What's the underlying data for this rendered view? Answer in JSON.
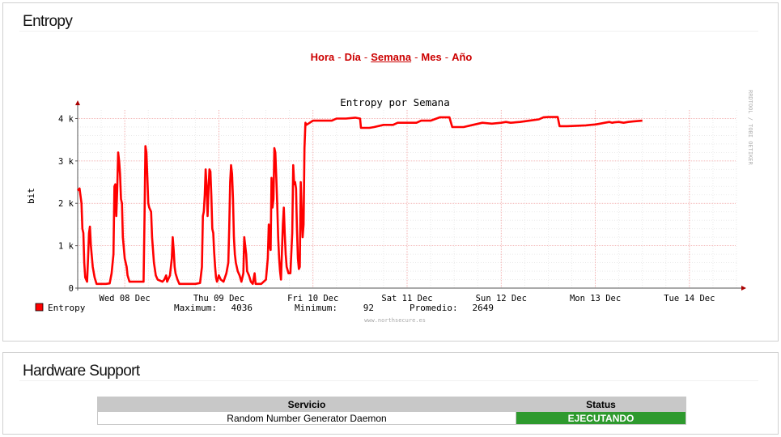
{
  "entropy_panel": {
    "title": "Entropy",
    "periods": [
      {
        "label": "Hora",
        "active": false
      },
      {
        "label": "Día",
        "active": false
      },
      {
        "label": "Semana",
        "active": true
      },
      {
        "label": "Mes",
        "active": false
      },
      {
        "label": "Año",
        "active": false
      }
    ],
    "separator": "-"
  },
  "chart_data": {
    "type": "line",
    "title": "Entropy por Semana",
    "ylabel": "bit",
    "ylim": [
      0,
      4200
    ],
    "yticks": [
      {
        "value": 0,
        "label": "0"
      },
      {
        "value": 1000,
        "label": "1 k"
      },
      {
        "value": 2000,
        "label": "2 k"
      },
      {
        "value": 3000,
        "label": "3 k"
      },
      {
        "value": 4000,
        "label": "4 k"
      }
    ],
    "xlim": [
      0,
      7
    ],
    "xticks": [
      {
        "value": 0.5,
        "label": "Wed 08 Dec"
      },
      {
        "value": 1.5,
        "label": "Thu 09 Dec"
      },
      {
        "value": 2.5,
        "label": "Fri 10 Dec"
      },
      {
        "value": 3.5,
        "label": "Sat 11 Dec"
      },
      {
        "value": 4.5,
        "label": "Sun 12 Dec"
      },
      {
        "value": 5.5,
        "label": "Mon 13 Dec"
      },
      {
        "value": 6.5,
        "label": "Tue 14 Dec"
      }
    ],
    "x_units": "days from left edge of plot",
    "grid": true,
    "line_color": "#ff0000",
    "watermark": "RRDTOOL / TOBI OETIKER",
    "footer": "www.northsecure.es",
    "legend": {
      "name": "Entropy",
      "color": "#ff0000",
      "maximum_label": "Maximum:",
      "maximum": "4036",
      "minimum_label": "Minimum:",
      "minimum": "92",
      "average_label": "Promedio:",
      "average": "2649"
    },
    "series": [
      {
        "name": "Entropy",
        "points": [
          [
            0.0,
            2300
          ],
          [
            0.02,
            2350
          ],
          [
            0.04,
            2000
          ],
          [
            0.05,
            1400
          ],
          [
            0.06,
            1300
          ],
          [
            0.07,
            600
          ],
          [
            0.08,
            250
          ],
          [
            0.1,
            150
          ],
          [
            0.11,
            700
          ],
          [
            0.12,
            1300
          ],
          [
            0.13,
            1450
          ],
          [
            0.14,
            1000
          ],
          [
            0.16,
            500
          ],
          [
            0.18,
            250
          ],
          [
            0.2,
            100
          ],
          [
            0.25,
            100
          ],
          [
            0.3,
            100
          ],
          [
            0.34,
            110
          ],
          [
            0.36,
            350
          ],
          [
            0.38,
            800
          ],
          [
            0.39,
            2400
          ],
          [
            0.4,
            2450
          ],
          [
            0.41,
            1700
          ],
          [
            0.42,
            2300
          ],
          [
            0.43,
            3200
          ],
          [
            0.44,
            3000
          ],
          [
            0.45,
            2700
          ],
          [
            0.46,
            2100
          ],
          [
            0.47,
            2000
          ],
          [
            0.48,
            1200
          ],
          [
            0.5,
            700
          ],
          [
            0.52,
            500
          ],
          [
            0.53,
            300
          ],
          [
            0.55,
            150
          ],
          [
            0.6,
            150
          ],
          [
            0.65,
            150
          ],
          [
            0.7,
            150
          ],
          [
            0.71,
            1700
          ],
          [
            0.72,
            3350
          ],
          [
            0.73,
            3200
          ],
          [
            0.74,
            2600
          ],
          [
            0.75,
            2000
          ],
          [
            0.76,
            1900
          ],
          [
            0.78,
            1800
          ],
          [
            0.79,
            1200
          ],
          [
            0.81,
            600
          ],
          [
            0.83,
            300
          ],
          [
            0.85,
            200
          ],
          [
            0.9,
            150
          ],
          [
            0.92,
            200
          ],
          [
            0.94,
            300
          ],
          [
            0.95,
            150
          ],
          [
            0.98,
            300
          ],
          [
            1.0,
            700
          ],
          [
            1.01,
            1200
          ],
          [
            1.02,
            900
          ],
          [
            1.03,
            500
          ],
          [
            1.04,
            350
          ],
          [
            1.06,
            200
          ],
          [
            1.08,
            100
          ],
          [
            1.15,
            100
          ],
          [
            1.25,
            100
          ],
          [
            1.3,
            120
          ],
          [
            1.32,
            500
          ],
          [
            1.33,
            1700
          ],
          [
            1.34,
            1800
          ],
          [
            1.35,
            2200
          ],
          [
            1.36,
            2800
          ],
          [
            1.37,
            2400
          ],
          [
            1.38,
            1700
          ],
          [
            1.39,
            2300
          ],
          [
            1.4,
            2800
          ],
          [
            1.41,
            2750
          ],
          [
            1.42,
            2200
          ],
          [
            1.43,
            1400
          ],
          [
            1.44,
            1300
          ],
          [
            1.45,
            850
          ],
          [
            1.46,
            500
          ],
          [
            1.47,
            250
          ],
          [
            1.48,
            150
          ],
          [
            1.5,
            300
          ],
          [
            1.52,
            200
          ],
          [
            1.55,
            150
          ],
          [
            1.58,
            350
          ],
          [
            1.6,
            600
          ],
          [
            1.61,
            1400
          ],
          [
            1.62,
            2500
          ],
          [
            1.63,
            2900
          ],
          [
            1.64,
            2700
          ],
          [
            1.65,
            2100
          ],
          [
            1.66,
            1200
          ],
          [
            1.67,
            800
          ],
          [
            1.68,
            600
          ],
          [
            1.7,
            400
          ],
          [
            1.72,
            300
          ],
          [
            1.74,
            150
          ],
          [
            1.76,
            350
          ],
          [
            1.77,
            1200
          ],
          [
            1.78,
            1000
          ],
          [
            1.79,
            800
          ],
          [
            1.8,
            400
          ],
          [
            1.82,
            300
          ],
          [
            1.84,
            150
          ],
          [
            1.86,
            100
          ],
          [
            1.88,
            350
          ],
          [
            1.89,
            100
          ],
          [
            1.95,
            100
          ],
          [
            2.0,
            200
          ],
          [
            2.02,
            700
          ],
          [
            2.03,
            1500
          ],
          [
            2.04,
            1000
          ],
          [
            2.05,
            900
          ],
          [
            2.06,
            2600
          ],
          [
            2.07,
            1900
          ],
          [
            2.08,
            2100
          ],
          [
            2.09,
            3300
          ],
          [
            2.1,
            3200
          ],
          [
            2.11,
            2600
          ],
          [
            2.12,
            2000
          ],
          [
            2.13,
            1200
          ],
          [
            2.14,
            700
          ],
          [
            2.15,
            400
          ],
          [
            2.16,
            200
          ],
          [
            2.18,
            1500
          ],
          [
            2.19,
            1900
          ],
          [
            2.2,
            1300
          ],
          [
            2.21,
            800
          ],
          [
            2.22,
            500
          ],
          [
            2.24,
            350
          ],
          [
            2.26,
            350
          ],
          [
            2.28,
            1300
          ],
          [
            2.29,
            2900
          ],
          [
            2.3,
            2450
          ],
          [
            2.31,
            2500
          ],
          [
            2.32,
            2350
          ],
          [
            2.33,
            1400
          ],
          [
            2.34,
            700
          ],
          [
            2.35,
            450
          ],
          [
            2.36,
            500
          ],
          [
            2.37,
            2500
          ],
          [
            2.38,
            1800
          ],
          [
            2.39,
            1200
          ],
          [
            2.4,
            1500
          ],
          [
            2.41,
            3300
          ],
          [
            2.42,
            3900
          ],
          [
            2.43,
            3850
          ],
          [
            2.5,
            3950
          ],
          [
            2.6,
            3950
          ],
          [
            2.7,
            3950
          ],
          [
            2.75,
            4000
          ],
          [
            2.85,
            4000
          ],
          [
            2.95,
            4020
          ],
          [
            3.0,
            4000
          ],
          [
            3.01,
            3780
          ],
          [
            3.1,
            3780
          ],
          [
            3.15,
            3800
          ],
          [
            3.25,
            3850
          ],
          [
            3.35,
            3850
          ],
          [
            3.4,
            3900
          ],
          [
            3.5,
            3900
          ],
          [
            3.6,
            3900
          ],
          [
            3.65,
            3950
          ],
          [
            3.75,
            3950
          ],
          [
            3.85,
            4030
          ],
          [
            3.95,
            4030
          ],
          [
            3.98,
            3800
          ],
          [
            4.1,
            3800
          ],
          [
            4.2,
            3850
          ],
          [
            4.3,
            3900
          ],
          [
            4.4,
            3880
          ],
          [
            4.5,
            3900
          ],
          [
            4.55,
            3920
          ],
          [
            4.6,
            3900
          ],
          [
            4.7,
            3920
          ],
          [
            4.8,
            3950
          ],
          [
            4.9,
            3980
          ],
          [
            4.95,
            4030
          ],
          [
            5.0,
            4036
          ],
          [
            5.1,
            4036
          ],
          [
            5.12,
            3820
          ],
          [
            5.2,
            3820
          ],
          [
            5.3,
            3830
          ],
          [
            5.4,
            3840
          ],
          [
            5.45,
            3850
          ],
          [
            5.5,
            3860
          ],
          [
            5.55,
            3880
          ],
          [
            5.6,
            3900
          ],
          [
            5.65,
            3920
          ],
          [
            5.68,
            3900
          ],
          [
            5.7,
            3910
          ],
          [
            5.75,
            3920
          ],
          [
            5.8,
            3900
          ],
          [
            5.85,
            3920
          ],
          [
            5.9,
            3930
          ],
          [
            5.95,
            3940
          ],
          [
            6.0,
            3950
          ]
        ]
      }
    ]
  },
  "hardware_panel": {
    "title": "Hardware Support",
    "table": {
      "headers": [
        "Servicio",
        "Status"
      ],
      "rows": [
        {
          "service": "Random Number Generator Daemon",
          "status": "EJECUTANDO",
          "status_color": "#2e9a2e"
        }
      ]
    }
  }
}
